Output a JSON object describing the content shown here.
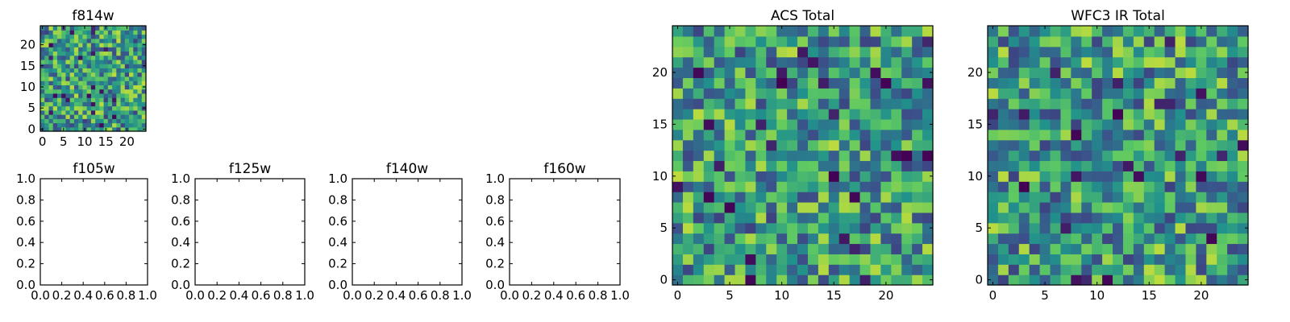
{
  "colormap": [
    "#440154",
    "#3b528b",
    "#21918c",
    "#5ec962",
    "#fde725"
  ],
  "chart_data": [
    {
      "id": "f814w",
      "type": "heatmap",
      "title": "f814w",
      "xlim": [
        -0.5,
        24.5
      ],
      "ylim": [
        -0.5,
        24.5
      ],
      "xticks": [
        0,
        5,
        10,
        15,
        20
      ],
      "xtick_labels": [
        "0",
        "5",
        "10",
        "15",
        "20"
      ],
      "yticks": [
        0,
        5,
        10,
        15,
        20
      ],
      "ytick_labels": [
        "0",
        "5",
        "10",
        "15",
        "20"
      ],
      "grid": false,
      "origin": "lower",
      "rows": 25,
      "cols": 25,
      "seed": 11
    },
    {
      "id": "f105w",
      "type": "empty",
      "title": "f105w",
      "xlim": [
        0,
        1
      ],
      "ylim": [
        0,
        1
      ],
      "xticks": [
        0,
        0.2,
        0.4,
        0.6,
        0.8,
        1.0
      ],
      "xtick_labels": [
        "0.0",
        "0.2",
        "0.4",
        "0.6",
        "0.8",
        "1.0"
      ],
      "yticks": [
        0,
        0.2,
        0.4,
        0.6,
        0.8,
        1.0
      ],
      "ytick_labels": [
        "0.0",
        "0.2",
        "0.4",
        "0.6",
        "0.8",
        "1.0"
      ]
    },
    {
      "id": "f125w",
      "type": "empty",
      "title": "f125w",
      "xlim": [
        0,
        1
      ],
      "ylim": [
        0,
        1
      ],
      "xticks": [
        0,
        0.2,
        0.4,
        0.6,
        0.8,
        1.0
      ],
      "xtick_labels": [
        "0.0",
        "0.2",
        "0.4",
        "0.6",
        "0.8",
        "1.0"
      ],
      "yticks": [
        0,
        0.2,
        0.4,
        0.6,
        0.8,
        1.0
      ],
      "ytick_labels": [
        "0.0",
        "0.2",
        "0.4",
        "0.6",
        "0.8",
        "1.0"
      ]
    },
    {
      "id": "f140w",
      "type": "empty",
      "title": "f140w",
      "xlim": [
        0,
        1
      ],
      "ylim": [
        0,
        1
      ],
      "xticks": [
        0,
        0.2,
        0.4,
        0.6,
        0.8,
        1.0
      ],
      "xtick_labels": [
        "0.0",
        "0.2",
        "0.4",
        "0.6",
        "0.8",
        "1.0"
      ],
      "yticks": [
        0,
        0.2,
        0.4,
        0.6,
        0.8,
        1.0
      ],
      "ytick_labels": [
        "0.0",
        "0.2",
        "0.4",
        "0.6",
        "0.8",
        "1.0"
      ]
    },
    {
      "id": "f160w",
      "type": "empty",
      "title": "f160w",
      "xlim": [
        0,
        1
      ],
      "ylim": [
        0,
        1
      ],
      "xticks": [
        0,
        0.2,
        0.4,
        0.6,
        0.8,
        1.0
      ],
      "xtick_labels": [
        "0.0",
        "0.2",
        "0.4",
        "0.6",
        "0.8",
        "1.0"
      ],
      "yticks": [
        0,
        0.2,
        0.4,
        0.6,
        0.8,
        1.0
      ],
      "ytick_labels": [
        "0.0",
        "0.2",
        "0.4",
        "0.6",
        "0.8",
        "1.0"
      ]
    },
    {
      "id": "acs-total",
      "type": "heatmap",
      "title": "ACS Total",
      "xlim": [
        -0.5,
        24.5
      ],
      "ylim": [
        -0.5,
        24.5
      ],
      "xticks": [
        0,
        5,
        10,
        15,
        20
      ],
      "xtick_labels": [
        "0",
        "5",
        "10",
        "15",
        "20"
      ],
      "yticks": [
        0,
        5,
        10,
        15,
        20
      ],
      "ytick_labels": [
        "0",
        "5",
        "10",
        "15",
        "20"
      ],
      "grid": false,
      "origin": "lower",
      "rows": 25,
      "cols": 25,
      "seed": 29
    },
    {
      "id": "wfc3-ir-total",
      "type": "heatmap",
      "title": "WFC3 IR Total",
      "xlim": [
        -0.5,
        24.5
      ],
      "ylim": [
        -0.5,
        24.5
      ],
      "xticks": [
        0,
        5,
        10,
        15,
        20
      ],
      "xtick_labels": [
        "0",
        "5",
        "10",
        "15",
        "20"
      ],
      "yticks": [
        0,
        5,
        10,
        15,
        20
      ],
      "ytick_labels": [
        "0",
        "5",
        "10",
        "15",
        "20"
      ],
      "grid": false,
      "origin": "lower",
      "rows": 25,
      "cols": 25,
      "seed": 47
    }
  ]
}
